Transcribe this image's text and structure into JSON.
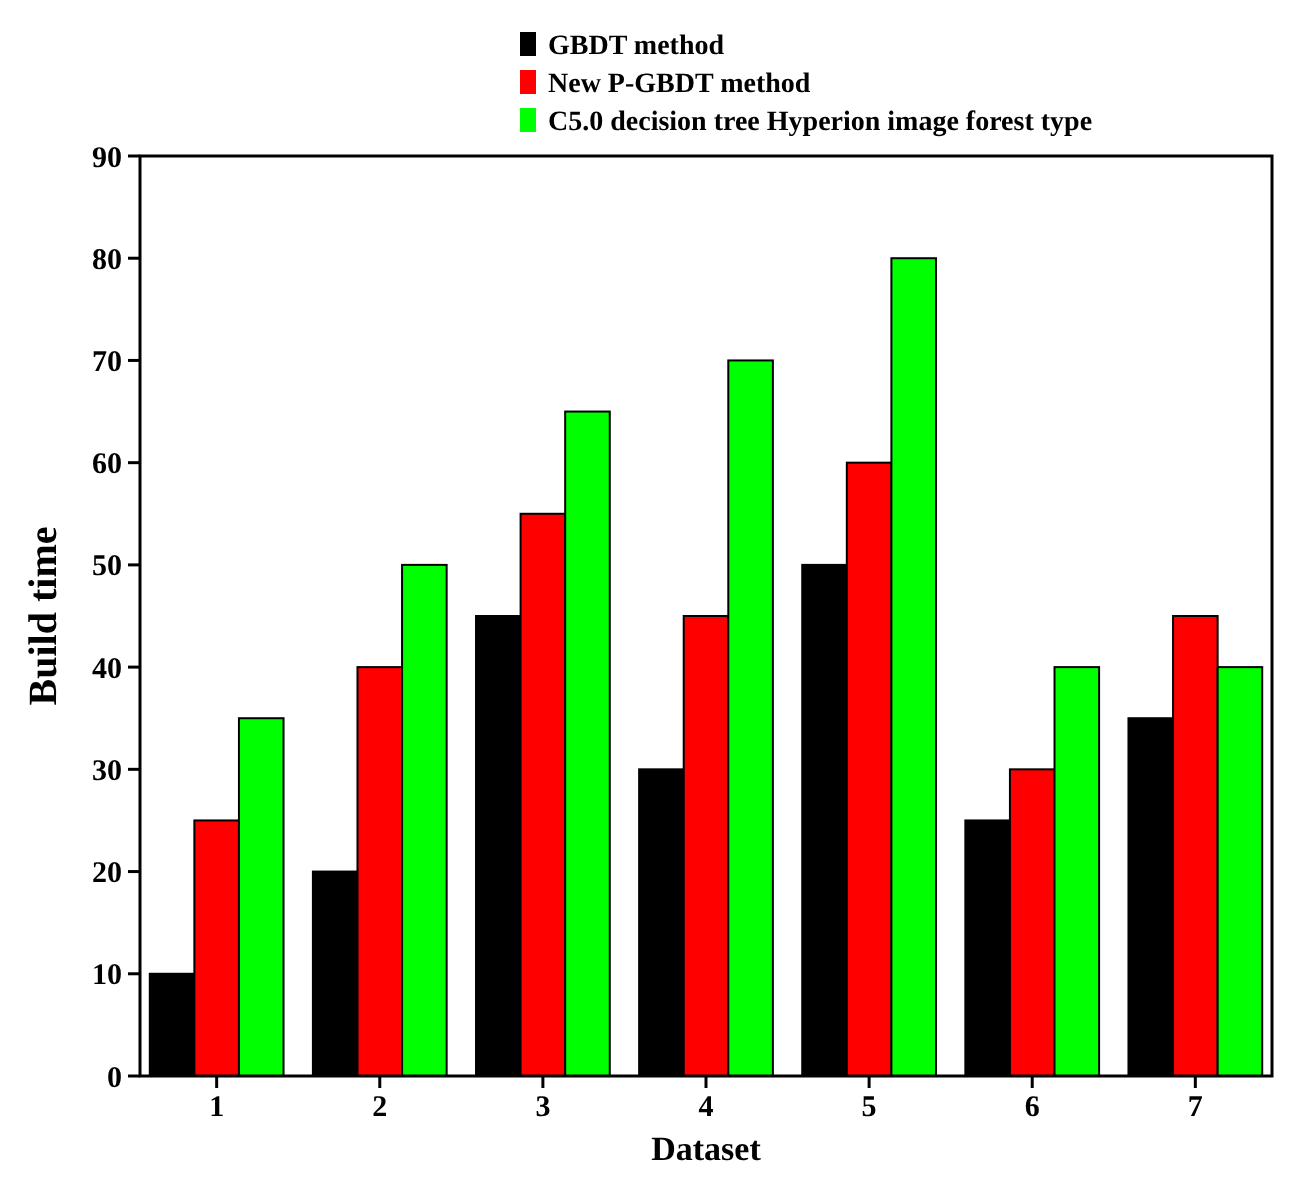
{
  "chart_data": {
    "type": "bar",
    "xlabel": "Dataset",
    "ylabel": "Build time",
    "categories": [
      "1",
      "2",
      "3",
      "4",
      "5",
      "6",
      "7"
    ],
    "series": [
      {
        "name": "GBDT method",
        "color": "#000000",
        "values": [
          10,
          20,
          45,
          30,
          50,
          25,
          35
        ]
      },
      {
        "name": "New P-GBDT method",
        "color": "#ff0000",
        "values": [
          25,
          40,
          55,
          45,
          60,
          30,
          45
        ]
      },
      {
        "name": "C5.0 decision tree Hyperion image forest type",
        "color": "#00ff00",
        "values": [
          35,
          50,
          65,
          70,
          80,
          40,
          40
        ]
      }
    ],
    "ylim": [
      0,
      90
    ],
    "yticks": [
      0,
      10,
      20,
      30,
      40,
      50,
      60,
      70,
      80,
      90
    ],
    "grid": false,
    "legend": "top"
  }
}
